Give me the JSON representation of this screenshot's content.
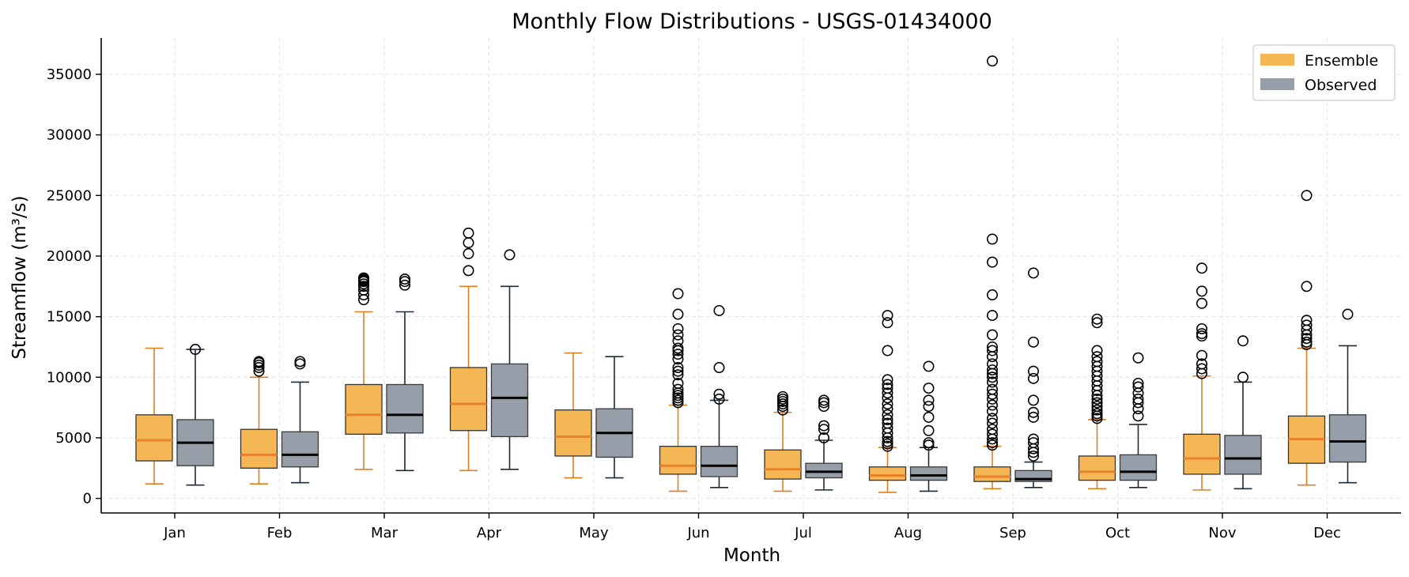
{
  "chart_data": {
    "type": "box",
    "title": "Monthly Flow Distributions - USGS-01434000",
    "xlabel": "Month",
    "ylabel": "Streamflow (m³/s)",
    "ylim": [
      -1200,
      38000
    ],
    "yticks": [
      0,
      5000,
      10000,
      15000,
      20000,
      25000,
      30000,
      35000
    ],
    "grid": true,
    "legend_position": "top-right",
    "categories": [
      "Jan",
      "Feb",
      "Mar",
      "Apr",
      "May",
      "Jun",
      "Jul",
      "Aug",
      "Sep",
      "Oct",
      "Nov",
      "Dec"
    ],
    "series": [
      {
        "name": "Ensemble",
        "color": "#F5B756",
        "edge_color": "#333333",
        "median_color": "#E8822A",
        "whisker_color": "#E07E1E",
        "stats": [
          {
            "whislo": 1200,
            "q1": 3100,
            "med": 4800,
            "q3": 6900,
            "whishi": 12400,
            "fliers": []
          },
          {
            "whislo": 1200,
            "q1": 2500,
            "med": 3600,
            "q3": 5700,
            "whishi": 10000,
            "fliers": [
              10500,
              10800,
              11000,
              11200,
              11300
            ]
          },
          {
            "whislo": 2400,
            "q1": 5300,
            "med": 6900,
            "q3": 9400,
            "whishi": 15400,
            "fliers": [
              16400,
              16800,
              17200,
              17500,
              17700,
              17900,
              18000,
              18100,
              18200
            ]
          },
          {
            "whislo": 2300,
            "q1": 5600,
            "med": 7800,
            "q3": 10800,
            "whishi": 17500,
            "fliers": [
              18800,
              20200,
              21100,
              21900
            ]
          },
          {
            "whislo": 1700,
            "q1": 3500,
            "med": 5100,
            "q3": 7300,
            "whishi": 12000,
            "fliers": []
          },
          {
            "whislo": 600,
            "q1": 2000,
            "med": 2700,
            "q3": 4300,
            "whishi": 7700,
            "fliers": [
              7900,
              8100,
              8300,
              8500,
              8700,
              9000,
              9500,
              10200,
              10500,
              10800,
              11500,
              11900,
              12200,
              12400,
              13000,
              13500,
              14000,
              15200,
              16900
            ]
          },
          {
            "whislo": 600,
            "q1": 1600,
            "med": 2400,
            "q3": 4000,
            "whishi": 7100,
            "fliers": [
              7300,
              7600,
              7800,
              8000,
              8200,
              8400
            ]
          },
          {
            "whislo": 500,
            "q1": 1500,
            "med": 1900,
            "q3": 2600,
            "whishi": 4200,
            "fliers": [
              4300,
              4500,
              4700,
              5000,
              5400,
              5800,
              6200,
              6500,
              6900,
              7400,
              7800,
              8300,
              8700,
              9100,
              9400,
              9800,
              12200,
              14500,
              15100
            ]
          },
          {
            "whislo": 800,
            "q1": 1400,
            "med": 1800,
            "q3": 2600,
            "whishi": 4300,
            "fliers": [
              4400,
              4600,
              4900,
              5300,
              5700,
              6200,
              6600,
              7200,
              7700,
              8200,
              8600,
              9000,
              9600,
              10000,
              10300,
              10600,
              11100,
              11700,
              12200,
              12500,
              13500,
              15100,
              16800,
              19500,
              21400,
              36100
            ]
          },
          {
            "whislo": 800,
            "q1": 1500,
            "med": 2200,
            "q3": 3500,
            "whishi": 6500,
            "fliers": [
              6600,
              6800,
              7000,
              7300,
              7600,
              7900,
              8200,
              8500,
              8900,
              9300,
              9700,
              10100,
              10500,
              10900,
              11300,
              11700,
              12200,
              14500,
              14800
            ]
          },
          {
            "whislo": 700,
            "q1": 2000,
            "med": 3300,
            "q3": 5300,
            "whishi": 10100,
            "fliers": [
              10300,
              10700,
              11100,
              11800,
              13400,
              13600,
              14000,
              16100,
              17100,
              19000
            ]
          },
          {
            "whislo": 1100,
            "q1": 2900,
            "med": 4900,
            "q3": 6800,
            "whishi": 12400,
            "fliers": [
              12700,
              12900,
              13200,
              13500,
              13900,
              14300,
              14700,
              17500,
              25000
            ]
          }
        ]
      },
      {
        "name": "Observed",
        "color": "#959EA9",
        "edge_color": "#3A3A3A",
        "median_color": "#000000",
        "whisker_color": "#1E2A38",
        "stats": [
          {
            "whislo": 1100,
            "q1": 2700,
            "med": 4600,
            "q3": 6500,
            "whishi": 12300,
            "fliers": [
              12300
            ]
          },
          {
            "whislo": 1300,
            "q1": 2600,
            "med": 3600,
            "q3": 5500,
            "whishi": 9600,
            "fliers": [
              11100,
              11300
            ]
          },
          {
            "whislo": 2300,
            "q1": 5400,
            "med": 6900,
            "q3": 9400,
            "whishi": 15400,
            "fliers": [
              17600,
              17900,
              18100
            ]
          },
          {
            "whislo": 2400,
            "q1": 5100,
            "med": 8300,
            "q3": 11100,
            "whishi": 17500,
            "fliers": [
              20100
            ]
          },
          {
            "whislo": 1700,
            "q1": 3400,
            "med": 5400,
            "q3": 7400,
            "whishi": 11700,
            "fliers": []
          },
          {
            "whislo": 900,
            "q1": 1800,
            "med": 2700,
            "q3": 4300,
            "whishi": 8100,
            "fliers": [
              8200,
              8600,
              10800,
              15500
            ]
          },
          {
            "whislo": 700,
            "q1": 1700,
            "med": 2200,
            "q3": 2900,
            "whishi": 4800,
            "fliers": [
              5000,
              5700,
              6000,
              7600,
              7900,
              8100
            ]
          },
          {
            "whislo": 600,
            "q1": 1500,
            "med": 1900,
            "q3": 2600,
            "whishi": 4200,
            "fliers": [
              4400,
              4600,
              5600,
              6700,
              7600,
              8100,
              9100,
              10900
            ]
          },
          {
            "whislo": 900,
            "q1": 1400,
            "med": 1600,
            "q3": 2300,
            "whishi": 3000,
            "fliers": [
              3500,
              3800,
              4100,
              4600,
              4900,
              6700,
              7100,
              8100,
              9900,
              10500,
              12900,
              18600
            ]
          },
          {
            "whislo": 900,
            "q1": 1500,
            "med": 2200,
            "q3": 3600,
            "whishi": 6100,
            "fliers": [
              6800,
              7400,
              7900,
              8200,
              8700,
              9200,
              9500,
              11600
            ]
          },
          {
            "whislo": 800,
            "q1": 2000,
            "med": 3300,
            "q3": 5200,
            "whishi": 9600,
            "fliers": [
              10000,
              13000
            ]
          },
          {
            "whislo": 1300,
            "q1": 3000,
            "med": 4700,
            "q3": 6900,
            "whishi": 12600,
            "fliers": [
              15200
            ]
          }
        ]
      }
    ]
  }
}
